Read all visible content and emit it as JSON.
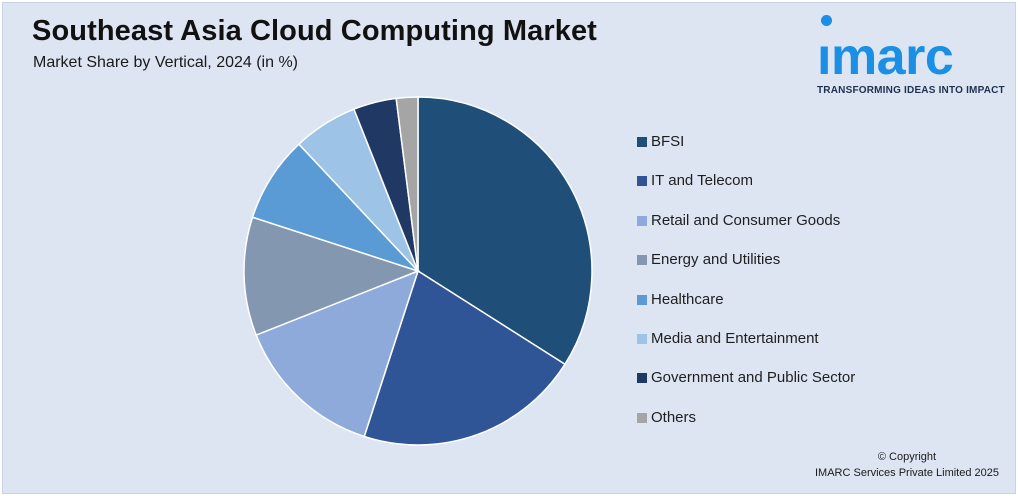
{
  "header": {
    "title": "Southeast Asia Cloud Computing Market",
    "subtitle": "Market Share by Vertical, 2024 (in %)"
  },
  "logo": {
    "word": "ımarc",
    "tagline": "TRANSFORMING IDEAS INTO IMPACT",
    "color": "#1a8fe3"
  },
  "chart_data": {
    "type": "pie",
    "title": "",
    "categories": [
      "BFSI",
      "IT and Telecom",
      "Retail and Consumer Goods",
      "Energy and Utilities",
      "Healthcare",
      "Media and Entertainment",
      "Government and Public Sector",
      "Others"
    ],
    "values": [
      34,
      21,
      14,
      11,
      8,
      6,
      4,
      2
    ],
    "colors": [
      "#1f4e79",
      "#2f5597",
      "#8eaadb",
      "#8497b0",
      "#5b9bd5",
      "#9dc3e6",
      "#203864",
      "#a5a5a5"
    ],
    "legend_position": "right"
  },
  "footer": {
    "copyright_line1": "© Copyright",
    "copyright_line2": "IMARC Services Private Limited 2025"
  }
}
